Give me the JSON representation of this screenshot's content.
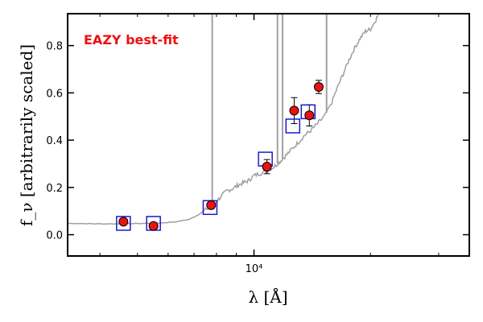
{
  "chart_data": {
    "type": "scatter",
    "title": "",
    "annotation": "EAZY best-fit",
    "xlabel": "λ [Å]",
    "ylabel": "f_ν [arbitrarily scaled]",
    "xscale": "log",
    "xlim": [
      3300,
      36000
    ],
    "ylim": [
      -0.09,
      0.935
    ],
    "x_major_ticks": [
      {
        "value": 10000,
        "label": "10⁴"
      }
    ],
    "x_minor_ticks": [
      4000,
      5000,
      6000,
      7000,
      8000,
      9000,
      20000,
      30000
    ],
    "y_ticks": [
      {
        "value": 0.0,
        "label": "0.0"
      },
      {
        "value": 0.2,
        "label": "0.2"
      },
      {
        "value": 0.4,
        "label": "0.4"
      },
      {
        "value": 0.6,
        "label": "0.6"
      },
      {
        "value": 0.8,
        "label": "0.8"
      }
    ],
    "grid": false,
    "colors": {
      "sed": "#a0a0a0",
      "model": "#1a1acc",
      "observed": "#ee1111",
      "annotation": "#ee1111"
    },
    "series": [
      {
        "role": "template-sed",
        "x": [
          3300,
          3700,
          4000,
          4400,
          4800,
          5300,
          5800,
          6300,
          6800,
          7100,
          7500,
          7900,
          8200,
          8500,
          8800,
          9100,
          9400,
          9700,
          10000,
          10400,
          10800,
          11200,
          11600,
          12000,
          12500,
          13000,
          13500,
          14000,
          14600,
          15200,
          15800,
          16400,
          17000,
          17600,
          18200,
          18800,
          19400,
          20000,
          20500,
          21000
        ],
        "y": [
          0.048,
          0.047,
          0.046,
          0.046,
          0.047,
          0.048,
          0.05,
          0.055,
          0.065,
          0.08,
          0.105,
          0.13,
          0.16,
          0.185,
          0.195,
          0.21,
          0.22,
          0.23,
          0.25,
          0.26,
          0.27,
          0.285,
          0.305,
          0.33,
          0.36,
          0.39,
          0.42,
          0.44,
          0.47,
          0.5,
          0.55,
          0.62,
          0.68,
          0.74,
          0.79,
          0.83,
          0.86,
          0.87,
          0.9,
          0.935
        ],
        "emission_lines": [
          7800,
          11500,
          11850,
          15400
        ]
      },
      {
        "role": "model-photometry",
        "x": [
          4600,
          5500,
          7700,
          10700,
          12600,
          13800
        ],
        "y": [
          0.048,
          0.048,
          0.115,
          0.32,
          0.46,
          0.52
        ]
      },
      {
        "role": "observed-photometry",
        "x": [
          4600,
          5500,
          7750,
          10800,
          12700,
          13900,
          14700
        ],
        "y": [
          0.055,
          0.037,
          0.125,
          0.288,
          0.525,
          0.505,
          0.625
        ],
        "yerr": [
          0.012,
          0.01,
          0.012,
          0.03,
          0.055,
          0.045,
          0.028
        ]
      }
    ]
  }
}
